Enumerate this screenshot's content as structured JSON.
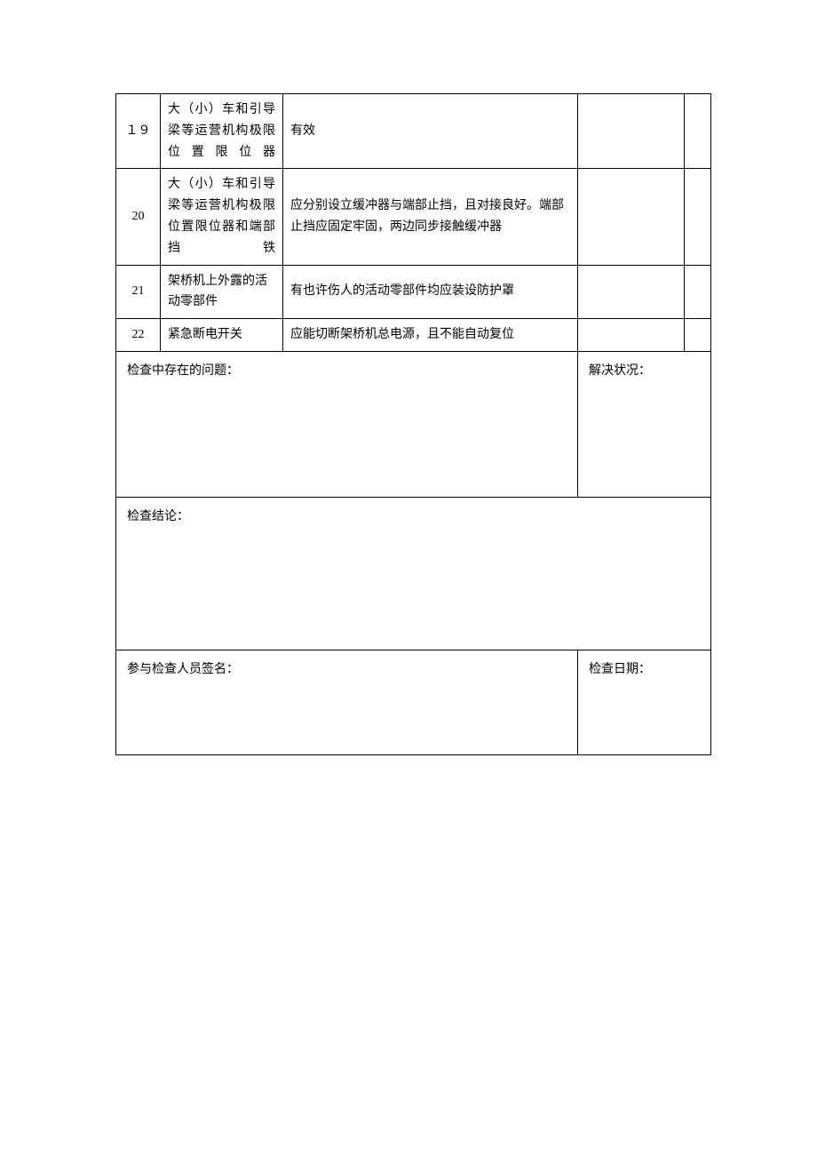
{
  "rows": [
    {
      "no": "１９",
      "item": "大（小）车和引导梁等运营机构极限位置限位器",
      "desc": "有效"
    },
    {
      "no": "20",
      "item": "大（小）车和引导梁等运营机构极限位置限位器和端部挡铁",
      "desc": "应分别设立缓冲器与端部止挡，且对接良好。端部止挡应固定牢固，两边同步接触缓冲器"
    },
    {
      "no": "21",
      "item": "架桥机上外露的活动零部件",
      "desc": "有也许伤人的活动零部件均应装设防护罩"
    },
    {
      "no": "22",
      "item": "紧急断电开关",
      "desc": "应能切断架桥机总电源，且不能自动复位"
    }
  ],
  "sections": {
    "problems_label": "检查中存在的问题：",
    "resolution_label": "解决状况：",
    "conclusion_label": "检查结论：",
    "signature_label": "参与检查人员签名：",
    "date_label": "检查日期："
  },
  "colors": {
    "border": "#000000",
    "text": "#000000",
    "background": "#ffffff"
  },
  "typography": {
    "font_family": "SimSun",
    "font_size": 14,
    "line_height": 1.7
  }
}
